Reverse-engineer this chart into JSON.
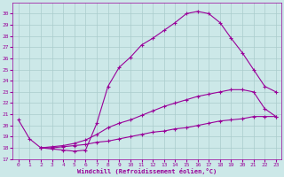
{
  "xlabel": "Windchill (Refroidissement éolien,°C)",
  "background_color": "#cce8e8",
  "grid_color": "#aacccc",
  "line_color": "#990099",
  "xlim": [
    -0.5,
    23.5
  ],
  "ylim": [
    17,
    31
  ],
  "xticks": [
    0,
    1,
    2,
    3,
    4,
    5,
    6,
    7,
    8,
    9,
    10,
    11,
    12,
    13,
    14,
    15,
    16,
    17,
    18,
    19,
    20,
    21,
    22,
    23
  ],
  "yticks": [
    17,
    18,
    19,
    20,
    21,
    22,
    23,
    24,
    25,
    26,
    27,
    28,
    29,
    30
  ],
  "series": [
    {
      "x": [
        0,
        1,
        2,
        3,
        4,
        5,
        6,
        7,
        8,
        9,
        10,
        11,
        12,
        13,
        14,
        15,
        16,
        17,
        18,
        19,
        20,
        21,
        22,
        23
      ],
      "y": [
        20.5,
        18.8,
        18.0,
        17.9,
        17.8,
        17.7,
        17.8,
        20.2,
        23.5,
        25.2,
        26.1,
        27.2,
        27.8,
        28.5,
        29.2,
        30.0,
        30.2,
        30.0,
        29.2,
        27.8,
        26.5,
        25.0,
        23.5,
        23.0
      ]
    },
    {
      "x": [
        2,
        3,
        4,
        5,
        6,
        7,
        8,
        9,
        10,
        11,
        12,
        13,
        14,
        15,
        16,
        17,
        18,
        19,
        20,
        21,
        22,
        23
      ],
      "y": [
        18.0,
        18.1,
        18.2,
        18.4,
        18.7,
        19.2,
        19.8,
        20.2,
        20.5,
        20.9,
        21.3,
        21.7,
        22.0,
        22.3,
        22.6,
        22.8,
        23.0,
        23.2,
        23.2,
        23.0,
        21.5,
        20.8
      ]
    },
    {
      "x": [
        2,
        3,
        4,
        5,
        6,
        7,
        8,
        9,
        10,
        11,
        12,
        13,
        14,
        15,
        16,
        17,
        18,
        19,
        20,
        21,
        22,
        23
      ],
      "y": [
        18.0,
        18.0,
        18.1,
        18.2,
        18.3,
        18.5,
        18.6,
        18.8,
        19.0,
        19.2,
        19.4,
        19.5,
        19.7,
        19.8,
        20.0,
        20.2,
        20.4,
        20.5,
        20.6,
        20.8,
        20.8,
        20.8
      ]
    }
  ]
}
